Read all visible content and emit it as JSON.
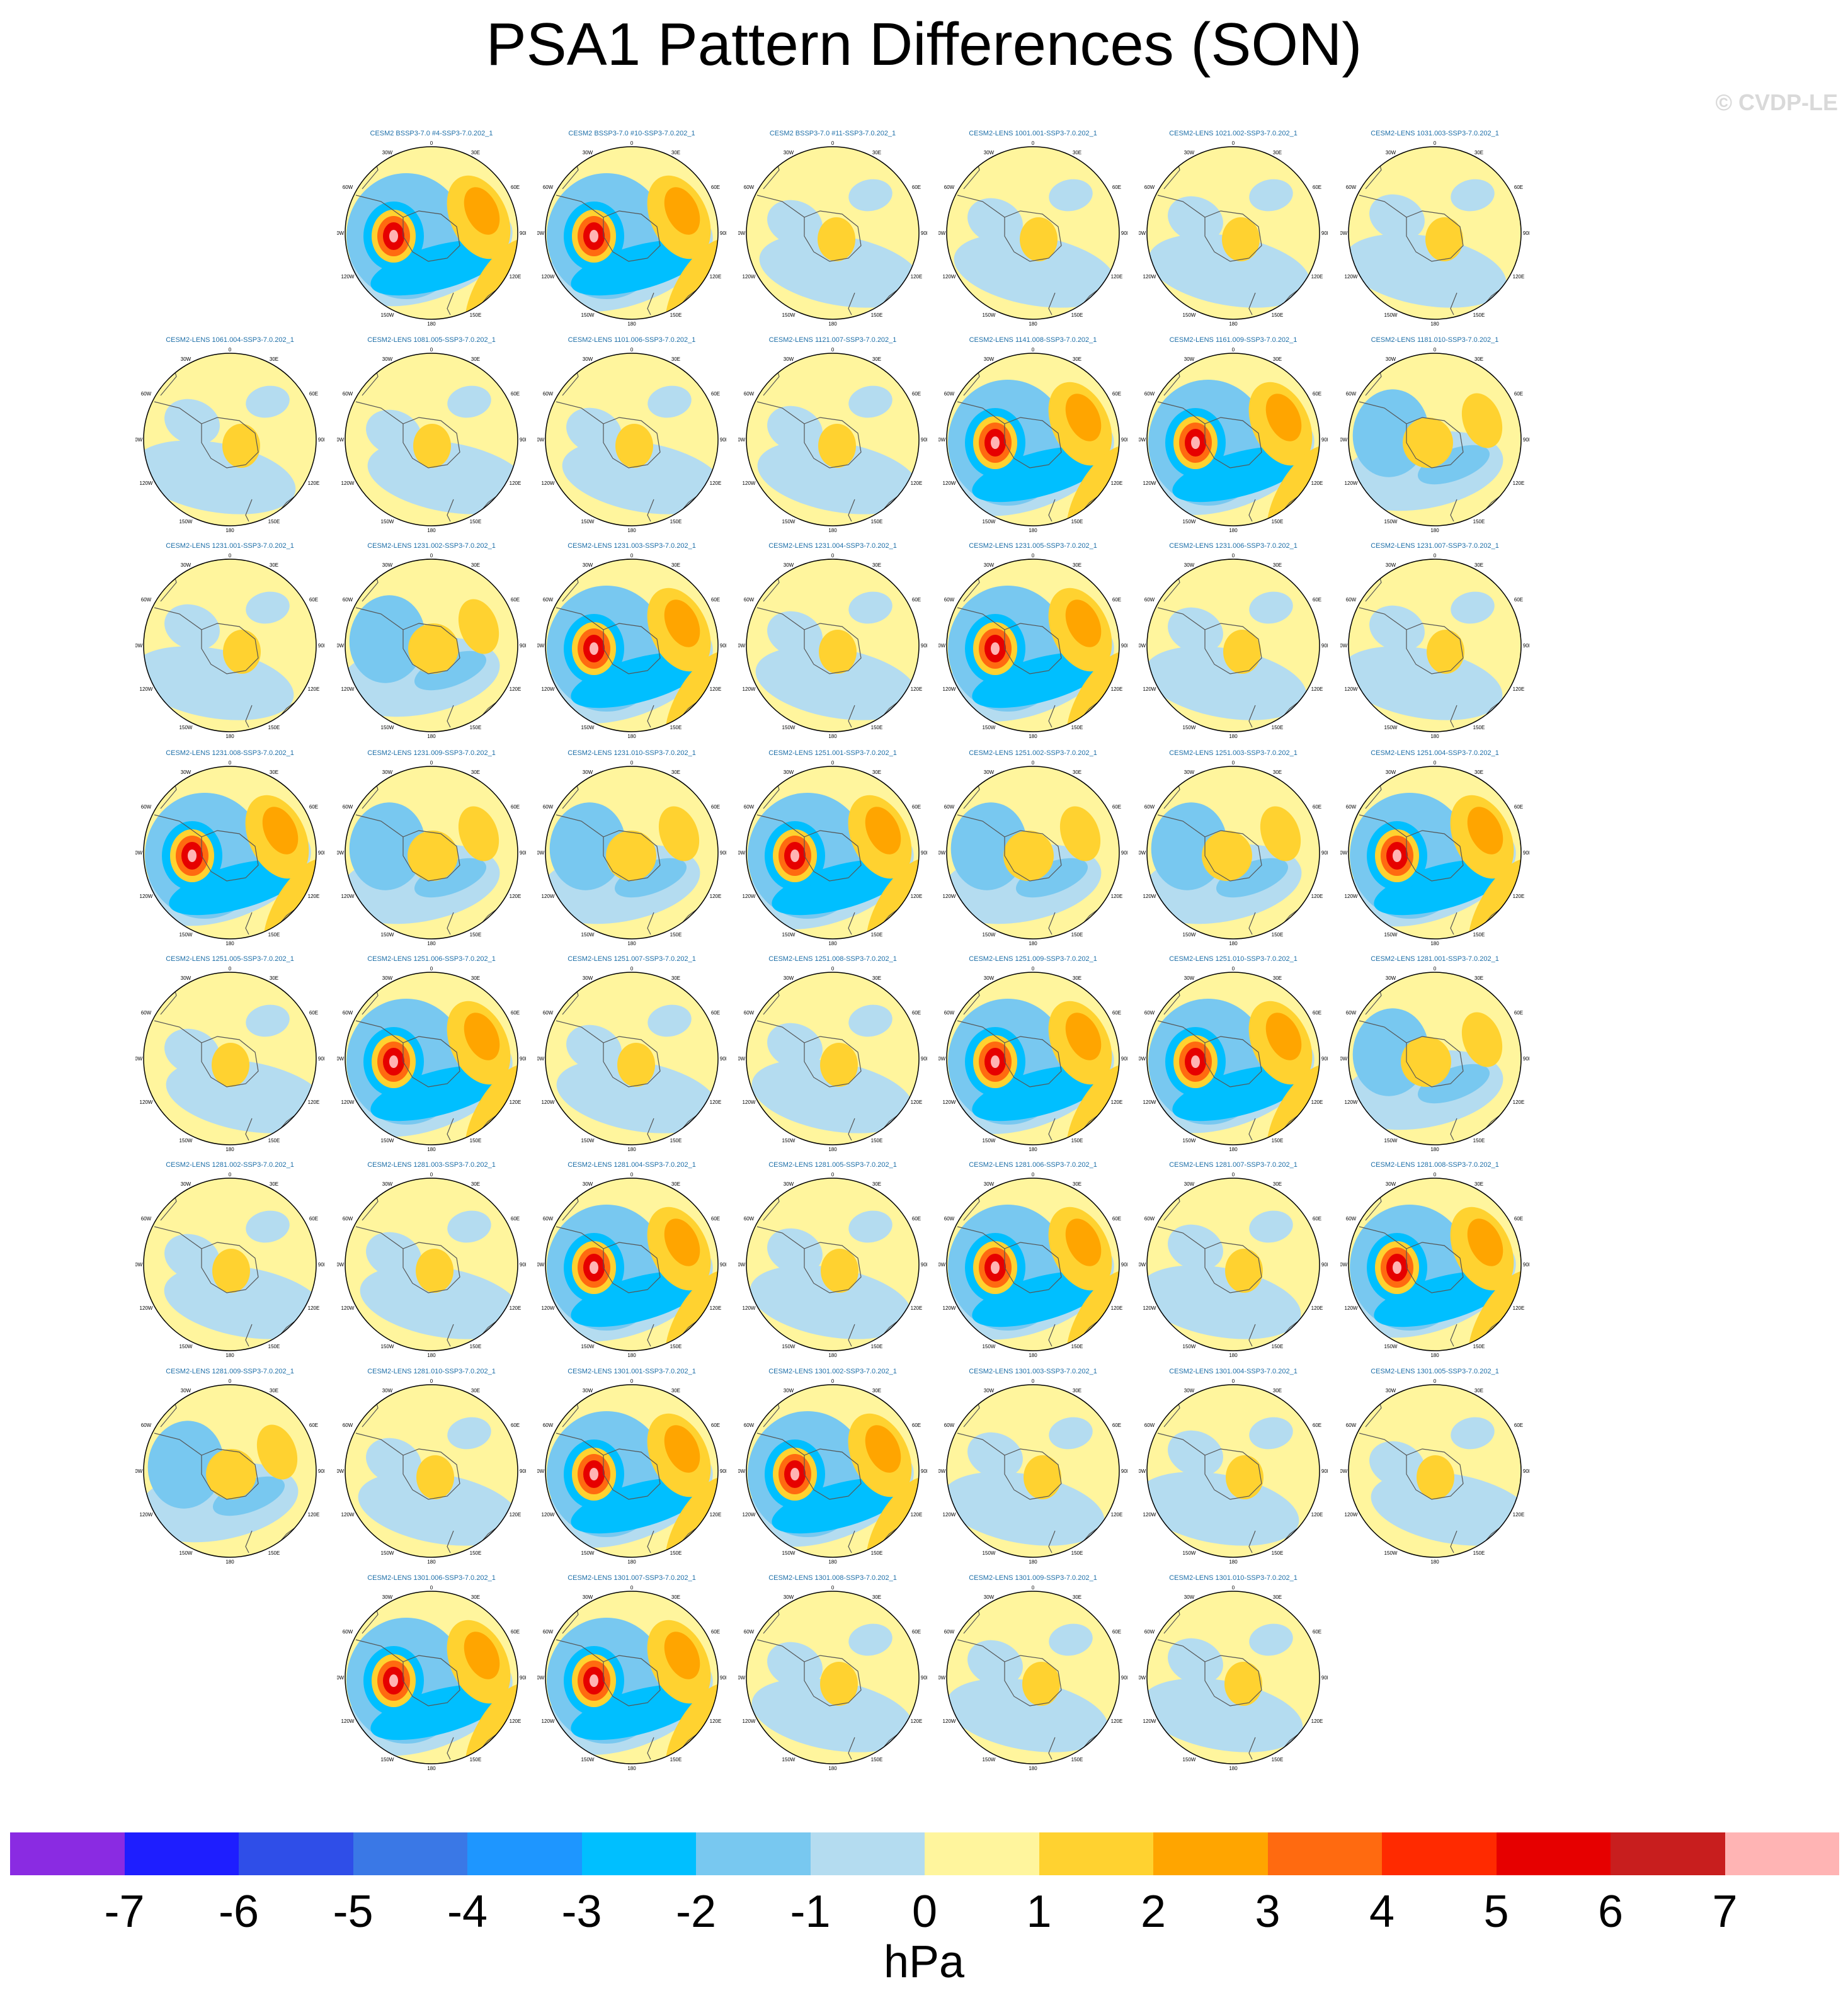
{
  "title": "PSA1 Pattern Differences (SON)",
  "credit": "© CVDP-LE",
  "units": "hPa",
  "colorbar": {
    "ticks": [
      "-7",
      "-6",
      "-5",
      "-4",
      "-3",
      "-2",
      "-1",
      "0",
      "1",
      "2",
      "3",
      "4",
      "5",
      "6",
      "7"
    ],
    "colors": [
      "#8a2be2",
      "#1e1eff",
      "#2f4ee8",
      "#3a78e6",
      "#1e96ff",
      "#00bfff",
      "#78c8f0",
      "#b4dcf0",
      "#fff59d",
      "#ffd230",
      "#ffa500",
      "#ff6a10",
      "#ff2a00",
      "#e60000",
      "#c81e1e",
      "#ffb4b4"
    ]
  },
  "map_labels": {
    "top": "0",
    "bottom": "180",
    "upper_left": "30W",
    "upper_right": "30E",
    "left_upper": "60W",
    "right_upper": "60E",
    "left": "90W",
    "right": "90E",
    "left_lower": "120W",
    "right_lower": "120E",
    "lower_left": "150W",
    "lower_right": "150E"
  },
  "panels": [
    {
      "label": "CESM2 BSSP3-7.0 #4-SSP3-7.0.202_1",
      "anomaly": "strong"
    },
    {
      "label": "CESM2 BSSP3-7.0 #10-SSP3-7.0.202_1",
      "anomaly": "strong"
    },
    {
      "label": "CESM2 BSSP3-7.0 #11-SSP3-7.0.202_1",
      "anomaly": "weak"
    },
    {
      "label": "CESM2-LENS 1001.001-SSP3-7.0.202_1",
      "anomaly": "weak"
    },
    {
      "label": "CESM2-LENS 1021.002-SSP3-7.0.202_1",
      "anomaly": "weak"
    },
    {
      "label": "CESM2-LENS 1031.003-SSP3-7.0.202_1",
      "anomaly": "weak"
    },
    {
      "label": "CESM2-LENS 1061.004-SSP3-7.0.202_1",
      "anomaly": "weak"
    },
    {
      "label": "CESM2-LENS 1081.005-SSP3-7.0.202_1",
      "anomaly": "weak"
    },
    {
      "label": "CESM2-LENS 1101.006-SSP3-7.0.202_1",
      "anomaly": "weak"
    },
    {
      "label": "CESM2-LENS 1121.007-SSP3-7.0.202_1",
      "anomaly": "weak"
    },
    {
      "label": "CESM2-LENS 1141.008-SSP3-7.0.202_1",
      "anomaly": "strong"
    },
    {
      "label": "CESM2-LENS 1161.009-SSP3-7.0.202_1",
      "anomaly": "strong"
    },
    {
      "label": "CESM2-LENS 1181.010-SSP3-7.0.202_1",
      "anomaly": "moderate"
    },
    {
      "label": "CESM2-LENS 1231.001-SSP3-7.0.202_1",
      "anomaly": "weak"
    },
    {
      "label": "CESM2-LENS 1231.002-SSP3-7.0.202_1",
      "anomaly": "moderate"
    },
    {
      "label": "CESM2-LENS 1231.003-SSP3-7.0.202_1",
      "anomaly": "strong"
    },
    {
      "label": "CESM2-LENS 1231.004-SSP3-7.0.202_1",
      "anomaly": "weak"
    },
    {
      "label": "CESM2-LENS 1231.005-SSP3-7.0.202_1",
      "anomaly": "strong"
    },
    {
      "label": "CESM2-LENS 1231.006-SSP3-7.0.202_1",
      "anomaly": "weak"
    },
    {
      "label": "CESM2-LENS 1231.007-SSP3-7.0.202_1",
      "anomaly": "weak"
    },
    {
      "label": "CESM2-LENS 1231.008-SSP3-7.0.202_1",
      "anomaly": "strong"
    },
    {
      "label": "CESM2-LENS 1231.009-SSP3-7.0.202_1",
      "anomaly": "moderate"
    },
    {
      "label": "CESM2-LENS 1231.010-SSP3-7.0.202_1",
      "anomaly": "moderate"
    },
    {
      "label": "CESM2-LENS 1251.001-SSP3-7.0.202_1",
      "anomaly": "strong"
    },
    {
      "label": "CESM2-LENS 1251.002-SSP3-7.0.202_1",
      "anomaly": "moderate"
    },
    {
      "label": "CESM2-LENS 1251.003-SSP3-7.0.202_1",
      "anomaly": "moderate"
    },
    {
      "label": "CESM2-LENS 1251.004-SSP3-7.0.202_1",
      "anomaly": "strong"
    },
    {
      "label": "CESM2-LENS 1251.005-SSP3-7.0.202_1",
      "anomaly": "weak"
    },
    {
      "label": "CESM2-LENS 1251.006-SSP3-7.0.202_1",
      "anomaly": "strong"
    },
    {
      "label": "CESM2-LENS 1251.007-SSP3-7.0.202_1",
      "anomaly": "weak"
    },
    {
      "label": "CESM2-LENS 1251.008-SSP3-7.0.202_1",
      "anomaly": "weak"
    },
    {
      "label": "CESM2-LENS 1251.009-SSP3-7.0.202_1",
      "anomaly": "strong"
    },
    {
      "label": "CESM2-LENS 1251.010-SSP3-7.0.202_1",
      "anomaly": "strong"
    },
    {
      "label": "CESM2-LENS 1281.001-SSP3-7.0.202_1",
      "anomaly": "moderate"
    },
    {
      "label": "CESM2-LENS 1281.002-SSP3-7.0.202_1",
      "anomaly": "weak"
    },
    {
      "label": "CESM2-LENS 1281.003-SSP3-7.0.202_1",
      "anomaly": "weak"
    },
    {
      "label": "CESM2-LENS 1281.004-SSP3-7.0.202_1",
      "anomaly": "strong"
    },
    {
      "label": "CESM2-LENS 1281.005-SSP3-7.0.202_1",
      "anomaly": "weak"
    },
    {
      "label": "CESM2-LENS 1281.006-SSP3-7.0.202_1",
      "anomaly": "strong"
    },
    {
      "label": "CESM2-LENS 1281.007-SSP3-7.0.202_1",
      "anomaly": "weak"
    },
    {
      "label": "CESM2-LENS 1281.008-SSP3-7.0.202_1",
      "anomaly": "strong"
    },
    {
      "label": "CESM2-LENS 1281.009-SSP3-7.0.202_1",
      "anomaly": "moderate"
    },
    {
      "label": "CESM2-LENS 1281.010-SSP3-7.0.202_1",
      "anomaly": "weak"
    },
    {
      "label": "CESM2-LENS 1301.001-SSP3-7.0.202_1",
      "anomaly": "strong"
    },
    {
      "label": "CESM2-LENS 1301.002-SSP3-7.0.202_1",
      "anomaly": "strong"
    },
    {
      "label": "CESM2-LENS 1301.003-SSP3-7.0.202_1",
      "anomaly": "weak"
    },
    {
      "label": "CESM2-LENS 1301.004-SSP3-7.0.202_1",
      "anomaly": "weak"
    },
    {
      "label": "CESM2-LENS 1301.005-SSP3-7.0.202_1",
      "anomaly": "weak"
    },
    {
      "label": "CESM2-LENS 1301.006-SSP3-7.0.202_1",
      "anomaly": "strong"
    },
    {
      "label": "CESM2-LENS 1301.007-SSP3-7.0.202_1",
      "anomaly": "strong"
    },
    {
      "label": "CESM2-LENS 1301.008-SSP3-7.0.202_1",
      "anomaly": "weak"
    },
    {
      "label": "CESM2-LENS 1301.009-SSP3-7.0.202_1",
      "anomaly": "weak"
    },
    {
      "label": "CESM2-LENS 1301.010-SSP3-7.0.202_1",
      "anomaly": "weak"
    }
  ]
}
